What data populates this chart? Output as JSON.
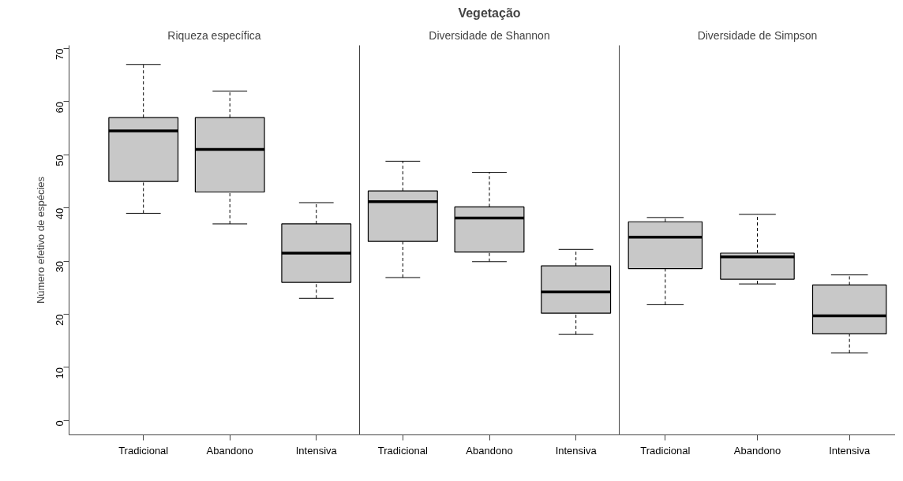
{
  "chart_data": [
    {
      "type": "box",
      "subtitle": "Riqueza específica",
      "ylabel": "Número efetivo de espécies",
      "categories": [
        "Tradicional",
        "Abandono",
        "Intensiva"
      ],
      "color": "#c8c8c8",
      "ylim": [
        -2.7,
        70.6
      ],
      "yticks": [
        0,
        10,
        20,
        30,
        40,
        50,
        60,
        70
      ],
      "grid": false,
      "boxes": [
        {
          "low": 39,
          "q1": 45,
          "median": 54.5,
          "q3": 57,
          "high": 67
        },
        {
          "low": 37,
          "q1": 43,
          "median": 51,
          "q3": 57,
          "high": 62
        },
        {
          "low": 23,
          "q1": 26,
          "median": 31.5,
          "q3": 37,
          "high": 41
        }
      ]
    },
    {
      "type": "box",
      "title": "Vegetação",
      "subtitle": "Diversidade de Shannon",
      "categories": [
        "Tradicional",
        "Abandono",
        "Intensiva"
      ],
      "color": "#c8c8c8",
      "ylim": [
        -2.7,
        70.6
      ],
      "yticks": [
        0,
        10,
        20,
        30,
        40,
        50,
        60,
        70
      ],
      "grid": false,
      "tick_labels": "x",
      "boxes": [
        {
          "low": 26.9,
          "q1": 33.7,
          "median": 41.2,
          "q3": 43.2,
          "high": 48.8
        },
        {
          "low": 29.9,
          "q1": 31.7,
          "median": 38.1,
          "q3": 40.2,
          "high": 46.7
        },
        {
          "low": 16.2,
          "q1": 20.2,
          "median": 24.2,
          "q3": 29.1,
          "high": 32.2
        }
      ]
    },
    {
      "type": "box",
      "subtitle": "Diversidade de Simpson",
      "categories": [
        "Tradicional",
        "Abandono",
        "Intensiva"
      ],
      "color": "#c8c8c8",
      "ylim": [
        -2.7,
        70.6
      ],
      "yticks": [
        0,
        10,
        20,
        30,
        40,
        50,
        60,
        70
      ],
      "grid": false,
      "tick_labels": "x",
      "boxes": [
        {
          "low": 21.8,
          "q1": 28.6,
          "median": 34.5,
          "q3": 37.4,
          "high": 38.2
        },
        {
          "low": 25.7,
          "q1": 26.6,
          "median": 30.8,
          "q3": 31.5,
          "high": 38.8
        },
        {
          "low": 12.7,
          "q1": 16.3,
          "median": 19.7,
          "q3": 25.5,
          "high": 27.4
        }
      ]
    }
  ]
}
